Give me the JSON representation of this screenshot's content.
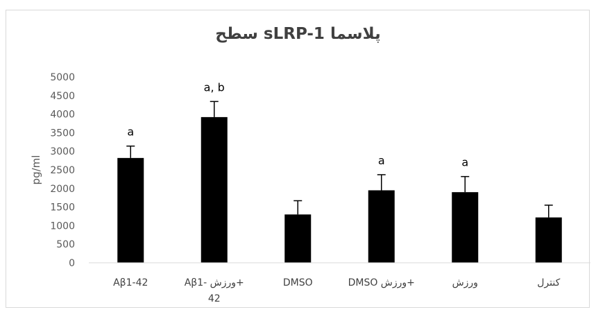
{
  "chart_data": {
    "type": "bar",
    "title": "سطح sLRP-1 پلاسما",
    "ylabel": "pg/ml",
    "xlabel": "",
    "ylim": [
      0,
      5000
    ],
    "yticks": [
      0,
      500,
      1000,
      1500,
      2000,
      2500,
      3000,
      3500,
      4000,
      4500,
      5000
    ],
    "categories": [
      [
        "Aβ1-42"
      ],
      [
        "Aβ1- ورزش+",
        "42"
      ],
      [
        "DMSO"
      ],
      [
        "DMSO ورزش+"
      ],
      [
        "ورزش"
      ],
      [
        "کنترل"
      ]
    ],
    "values": [
      2820,
      3920,
      1300,
      1950,
      1900,
      1220
    ],
    "errors": [
      320,
      420,
      370,
      420,
      420,
      330
    ],
    "significance": [
      "a",
      "a, b",
      "",
      "a",
      "a",
      ""
    ],
    "grid": false,
    "legend": "none",
    "bar_color": "#000000"
  }
}
